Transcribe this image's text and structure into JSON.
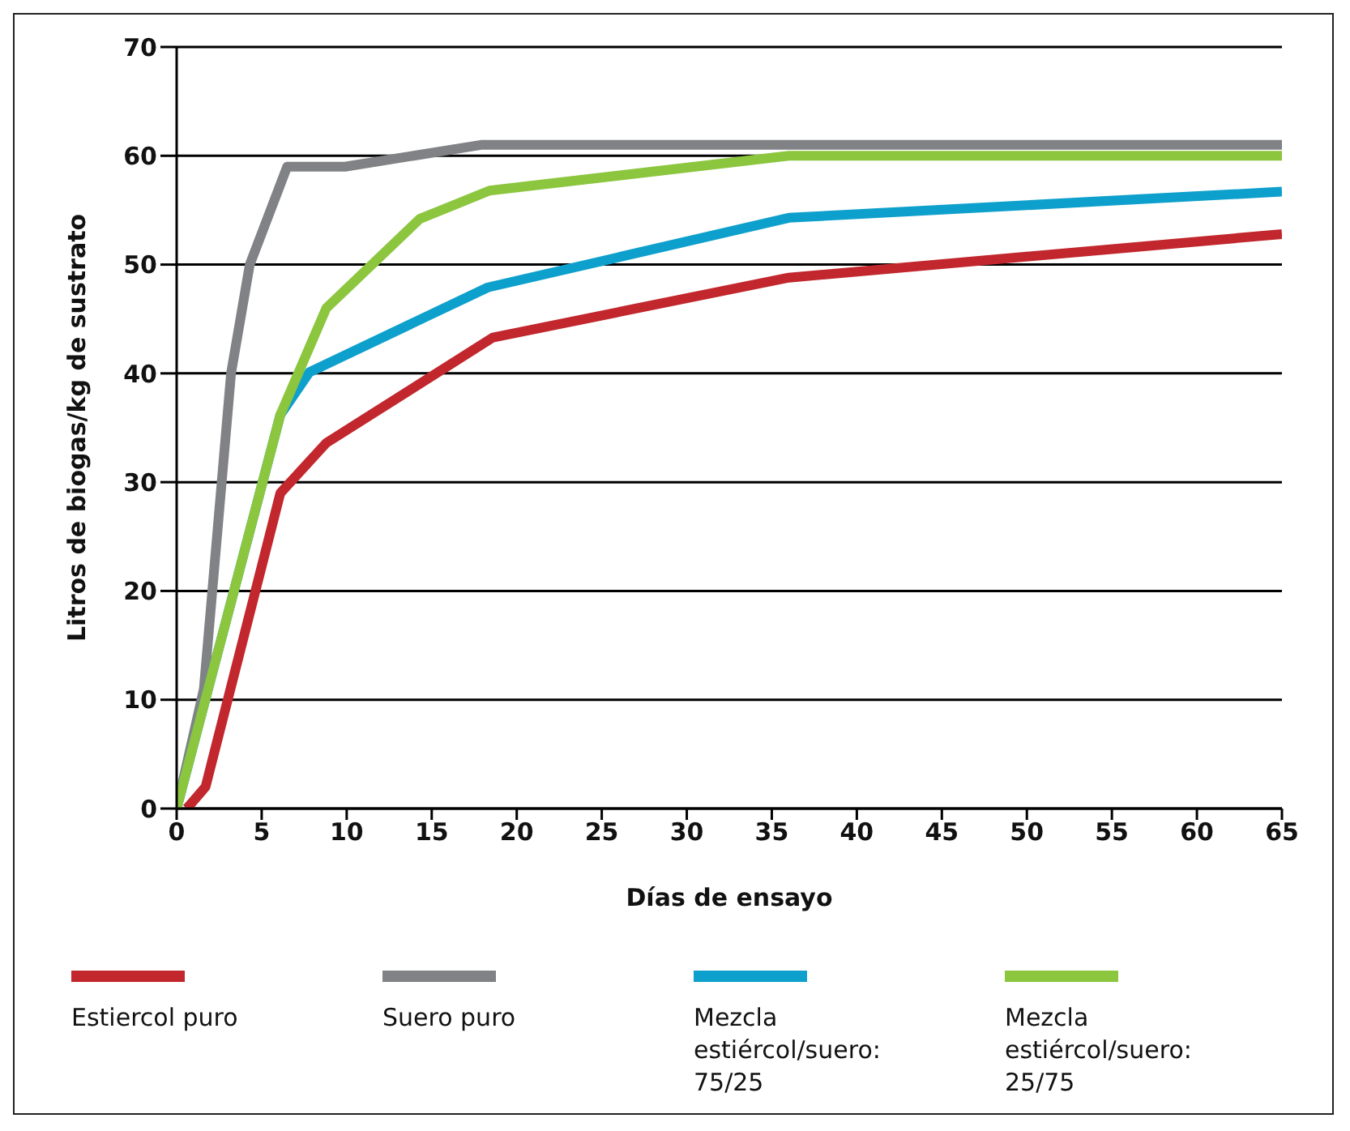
{
  "chart_data": {
    "type": "line",
    "xlabel": "Días de ensayo",
    "ylabel": "Litros de biogas/kg de sustrato",
    "xlim": [
      0,
      65
    ],
    "xticks": [
      0,
      5,
      10,
      15,
      20,
      25,
      30,
      35,
      40,
      45,
      50,
      55,
      60,
      65
    ],
    "ylim": [
      0,
      70
    ],
    "yticks": [
      0,
      10,
      20,
      30,
      40,
      50,
      60,
      70
    ],
    "grid": "y",
    "legend": "bottom",
    "marker": "none",
    "line_style": "solid",
    "series": [
      {
        "name": "Estiercol puro",
        "color": "#c1272d",
        "x": [
          0.6,
          1.7,
          6.1,
          8.8,
          18.6,
          36,
          65
        ],
        "values": [
          0,
          2,
          29,
          33.6,
          43.3,
          48.8,
          52.8
        ]
      },
      {
        "name": "Suero puro",
        "color": "#808285",
        "x": [
          0,
          1.6,
          3.2,
          4.3,
          6.5,
          9.9,
          17.9,
          65
        ],
        "values": [
          0,
          11,
          40,
          50,
          59,
          59,
          61,
          61
        ]
      },
      {
        "name": "Mezcla estiércol/suero: 75/25",
        "color": "#0ea0cc",
        "x": [
          0,
          6.1,
          7.8,
          18.3,
          36,
          65
        ],
        "values": [
          0,
          36.2,
          40.1,
          47.9,
          54.3,
          56.7
        ]
      },
      {
        "name": "Mezcla estiércol/suero: 25/75",
        "color": "#8cc63f",
        "x": [
          0,
          6.1,
          8.8,
          14.3,
          18.4,
          36,
          65
        ],
        "values": [
          0,
          36.2,
          46,
          54.2,
          56.8,
          60,
          60
        ]
      }
    ]
  }
}
